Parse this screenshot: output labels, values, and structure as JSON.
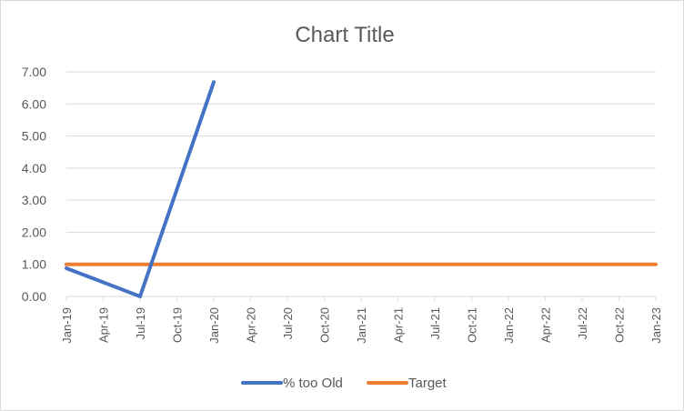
{
  "chart_data": {
    "type": "line",
    "title": "Chart Title",
    "xlabel": "",
    "ylabel": "",
    "ylim": [
      0,
      7
    ],
    "yticks": [
      "0.00",
      "1.00",
      "2.00",
      "3.00",
      "4.00",
      "5.00",
      "6.00",
      "7.00"
    ],
    "xticks": [
      "Jan-19",
      "Apr-19",
      "Jul-19",
      "Oct-19",
      "Jan-20",
      "Apr-20",
      "Jul-20",
      "Oct-20",
      "Jan-21",
      "Apr-21",
      "Jul-21",
      "Oct-21",
      "Jan-22",
      "Apr-22",
      "Jul-22",
      "Oct-22",
      "Jan-23"
    ],
    "grid": true,
    "legend_position": "bottom",
    "series": [
      {
        "name": "% too Old",
        "color": "#4472C4",
        "x": [
          "2019-01-01",
          "2019-07-01",
          "2020-01-01"
        ],
        "y": [
          0.88,
          0.0,
          6.68
        ]
      },
      {
        "name": "Target",
        "color": "#ED7D31",
        "x": [
          "2019-01-01",
          "2023-01-01"
        ],
        "y": [
          1.0,
          1.0
        ]
      }
    ]
  }
}
